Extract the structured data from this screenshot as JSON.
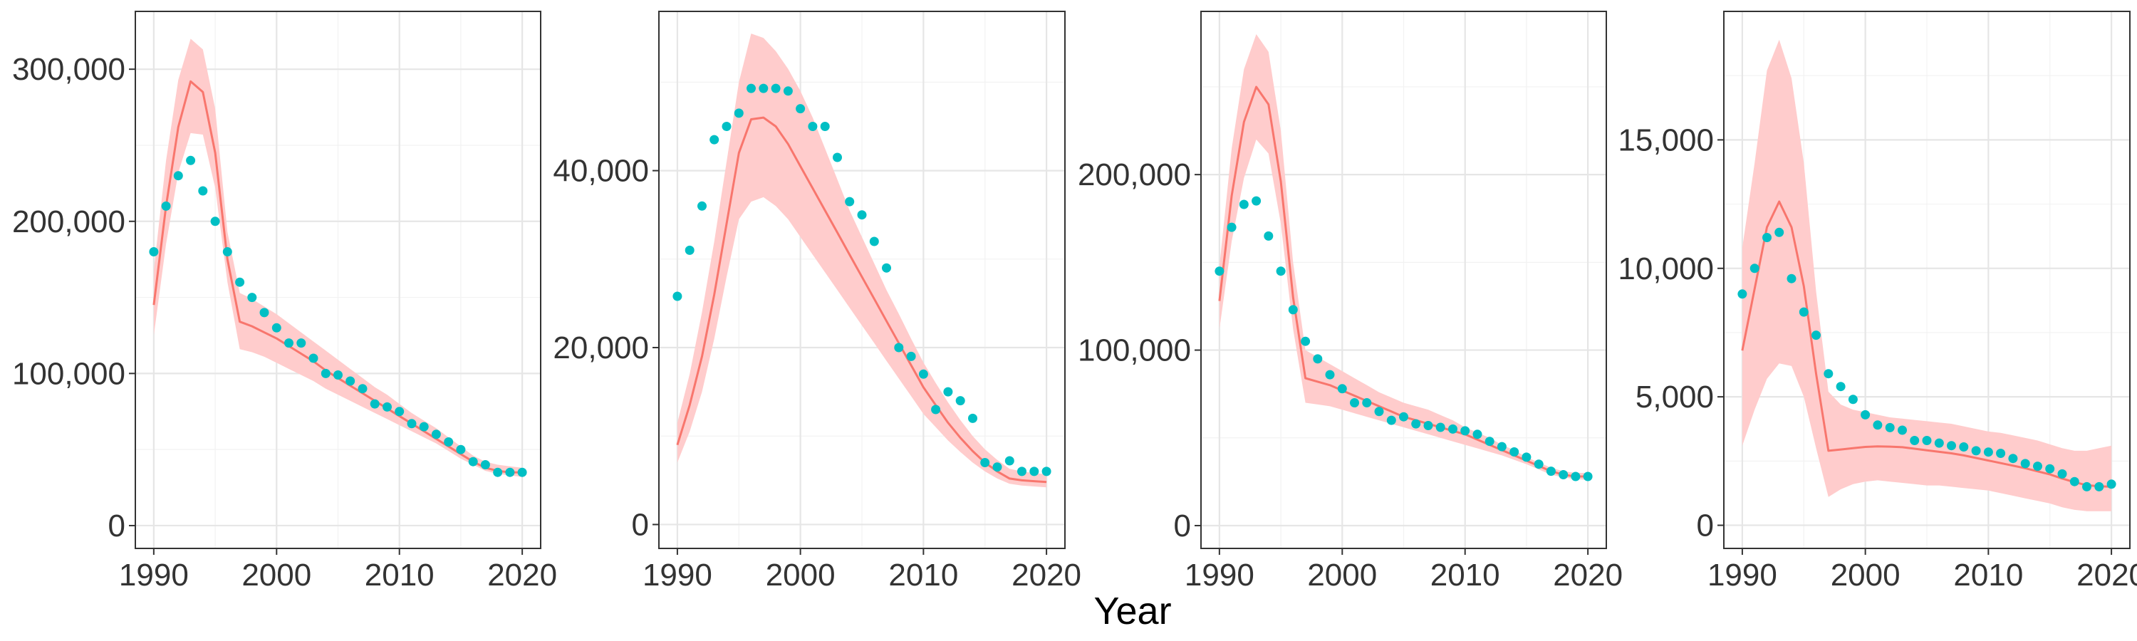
{
  "colors": {
    "fit_line": "#F8766D",
    "ribbon": "#FFCCCC",
    "points": "#00BFC4",
    "border": "#333333",
    "grid": "#E6E6E6",
    "background": "#FFFFFF"
  },
  "xlabel": "Year",
  "chart_data": [
    {
      "type": "line",
      "xlim": [
        1988.5,
        2021.5
      ],
      "ylim": [
        -15000,
        338000
      ],
      "x_ticks": [
        1990,
        2000,
        2010,
        2020
      ],
      "x_tick_labels": [
        "1990",
        "2000",
        "2010",
        "2020"
      ],
      "y_ticks": [
        0,
        100000,
        200000,
        300000
      ],
      "y_tick_labels": [
        "0",
        "100,000",
        "200,000",
        "300,000"
      ],
      "x": [
        1990,
        1991,
        1992,
        1993,
        1994,
        1995,
        1996,
        1997,
        1998,
        1999,
        2000,
        2001,
        2002,
        2003,
        2004,
        2005,
        2006,
        2007,
        2008,
        2009,
        2010,
        2011,
        2012,
        2013,
        2014,
        2015,
        2016,
        2017,
        2018,
        2019,
        2020
      ],
      "series": [
        {
          "kind": "fit",
          "values": [
            145000,
            210000,
            262000,
            292000,
            285000,
            245000,
            175000,
            134000,
            131000,
            127000,
            123000,
            118000,
            113000,
            108000,
            102000,
            97000,
            92000,
            87000,
            82000,
            77000,
            72000,
            67000,
            62000,
            57000,
            52000,
            47000,
            42000,
            38000,
            36000,
            35000,
            35000
          ]
        },
        {
          "kind": "ribbon_lower",
          "values": [
            125000,
            185000,
            232000,
            258000,
            257000,
            222000,
            160000,
            116000,
            114000,
            111000,
            107000,
            103000,
            99000,
            95000,
            90000,
            86000,
            82000,
            78000,
            74000,
            70000,
            66000,
            62000,
            58000,
            54000,
            49000,
            44000,
            40000,
            36000,
            34000,
            33000,
            32000
          ]
        },
        {
          "kind": "ribbon_upper",
          "values": [
            168000,
            240000,
            293000,
            320000,
            313000,
            274000,
            193000,
            153000,
            149000,
            144000,
            139000,
            133000,
            127000,
            121000,
            115000,
            109000,
            103000,
            97000,
            91000,
            86000,
            80000,
            74000,
            69000,
            64000,
            58000,
            52000,
            46000,
            42000,
            40000,
            39000,
            38000
          ]
        },
        {
          "kind": "observed",
          "values": [
            180000,
            210000,
            230000,
            240000,
            220000,
            200000,
            180000,
            160000,
            150000,
            140000,
            130000,
            120000,
            120000,
            110000,
            100000,
            99000,
            95000,
            90000,
            80000,
            78000,
            75000,
            67000,
            65000,
            60000,
            55000,
            50000,
            42000,
            40000,
            35000,
            35000,
            35000
          ]
        }
      ]
    },
    {
      "type": "line",
      "xlim": [
        1988.5,
        2021.5
      ],
      "ylim": [
        -2700,
        58000
      ],
      "x_ticks": [
        1990,
        2000,
        2010,
        2020
      ],
      "x_tick_labels": [
        "1990",
        "2000",
        "2010",
        "2020"
      ],
      "y_ticks": [
        0,
        20000,
        40000
      ],
      "y_tick_labels": [
        "0",
        "20,000",
        "40,000"
      ],
      "x": [
        1990,
        1991,
        1992,
        1993,
        1994,
        1995,
        1996,
        1997,
        1998,
        1999,
        2000,
        2001,
        2002,
        2003,
        2004,
        2005,
        2006,
        2007,
        2008,
        2009,
        2010,
        2011,
        2012,
        2013,
        2014,
        2015,
        2016,
        2017,
        2018,
        2019,
        2020
      ],
      "series": [
        {
          "kind": "fit",
          "values": [
            9000,
            13500,
            19000,
            26000,
            34000,
            42000,
            45800,
            46000,
            45000,
            43000,
            40500,
            38000,
            35500,
            33000,
            30500,
            28000,
            25500,
            23000,
            20500,
            18000,
            15500,
            13500,
            11500,
            9800,
            8300,
            7000,
            6000,
            5200,
            5000,
            4900,
            4800
          ]
        },
        {
          "kind": "ribbon_lower",
          "values": [
            7000,
            10500,
            15000,
            21000,
            28000,
            34500,
            36500,
            37000,
            36000,
            34500,
            32500,
            30500,
            28500,
            26500,
            24500,
            22500,
            20500,
            18500,
            16500,
            14500,
            12500,
            11000,
            9500,
            8200,
            7000,
            6000,
            5200,
            4600,
            4400,
            4300,
            4200
          ]
        },
        {
          "kind": "ribbon_upper",
          "values": [
            11500,
            17000,
            24000,
            32000,
            41000,
            50000,
            55500,
            55000,
            53500,
            51500,
            49000,
            46000,
            42500,
            39000,
            35500,
            32500,
            29500,
            26500,
            23800,
            21000,
            18300,
            16000,
            13800,
            11800,
            10000,
            8500,
            7300,
            6300,
            6000,
            5800,
            5700
          ]
        },
        {
          "kind": "observed",
          "values": [
            25800,
            31000,
            36000,
            43500,
            45000,
            46500,
            49300,
            49300,
            49300,
            49000,
            47000,
            45000,
            45000,
            41500,
            36500,
            35000,
            32000,
            29000,
            20000,
            19000,
            17000,
            13000,
            15000,
            14000,
            12000,
            7000,
            6500,
            7200,
            6000,
            6000,
            6000
          ]
        }
      ]
    },
    {
      "type": "line",
      "xlim": [
        1988.5,
        2021.5
      ],
      "ylim": [
        -13000,
        293000
      ],
      "x_ticks": [
        1990,
        2000,
        2010,
        2020
      ],
      "x_tick_labels": [
        "1990",
        "2000",
        "2010",
        "2020"
      ],
      "y_ticks": [
        0,
        100000,
        200000
      ],
      "y_tick_labels": [
        "0",
        "100,000",
        "200,000"
      ],
      "x": [
        1990,
        1991,
        1992,
        1993,
        1994,
        1995,
        1996,
        1997,
        1998,
        1999,
        2000,
        2001,
        2002,
        2003,
        2004,
        2005,
        2006,
        2007,
        2008,
        2009,
        2010,
        2011,
        2012,
        2013,
        2014,
        2015,
        2016,
        2017,
        2018,
        2019,
        2020
      ],
      "series": [
        {
          "kind": "fit",
          "values": [
            128000,
            188000,
            230000,
            250000,
            240000,
            196000,
            130000,
            84000,
            82000,
            80000,
            77000,
            74000,
            71000,
            68000,
            65000,
            62000,
            60000,
            58000,
            56000,
            54000,
            52000,
            49000,
            46000,
            43000,
            40000,
            37000,
            34000,
            31000,
            29000,
            28000,
            28000
          ]
        },
        {
          "kind": "ribbon_lower",
          "values": [
            112000,
            162000,
            198000,
            220000,
            212000,
            172000,
            112000,
            70000,
            69000,
            68000,
            66000,
            64000,
            62000,
            60000,
            58000,
            56000,
            54000,
            52000,
            50000,
            48000,
            46000,
            44000,
            42000,
            40000,
            37500,
            35000,
            32000,
            29000,
            27500,
            26500,
            26000
          ]
        },
        {
          "kind": "ribbon_upper",
          "values": [
            148000,
            215000,
            260000,
            280000,
            270000,
            225000,
            150000,
            100000,
            96000,
            92000,
            88000,
            84000,
            80000,
            76000,
            73000,
            70000,
            68000,
            66000,
            63000,
            60000,
            56000,
            53000,
            50000,
            46000,
            43000,
            39000,
            36000,
            33000,
            31000,
            30000,
            30000
          ]
        },
        {
          "kind": "observed",
          "values": [
            145000,
            170000,
            183000,
            185000,
            165000,
            145000,
            123000,
            105000,
            95000,
            86000,
            78000,
            70000,
            70000,
            65000,
            60000,
            62000,
            58000,
            57000,
            56000,
            55000,
            54000,
            52000,
            48000,
            45000,
            42000,
            39000,
            35000,
            31000,
            29000,
            28000,
            28000
          ]
        }
      ]
    },
    {
      "type": "line",
      "xlim": [
        1988.5,
        2021.5
      ],
      "ylim": [
        -900,
        20000
      ],
      "x_ticks": [
        1990,
        2000,
        2010,
        2020
      ],
      "x_tick_labels": [
        "1990",
        "2000",
        "2010",
        "2020"
      ],
      "y_ticks": [
        0,
        5000,
        10000,
        15000
      ],
      "y_tick_labels": [
        "0",
        "5,000",
        "10,000",
        "15,000"
      ],
      "x": [
        1990,
        1991,
        1992,
        1993,
        1994,
        1995,
        1996,
        1997,
        1998,
        1999,
        2000,
        2001,
        2002,
        2003,
        2004,
        2005,
        2006,
        2007,
        2008,
        2009,
        2010,
        2011,
        2012,
        2013,
        2014,
        2015,
        2016,
        2017,
        2018,
        2019,
        2020
      ],
      "series": [
        {
          "kind": "fit",
          "values": [
            6800,
            9200,
            11600,
            12600,
            11600,
            9300,
            5900,
            2900,
            2950,
            3000,
            3050,
            3070,
            3060,
            3040,
            2980,
            2920,
            2860,
            2800,
            2720,
            2620,
            2520,
            2420,
            2320,
            2220,
            2100,
            1980,
            1820,
            1680,
            1560,
            1520,
            1500
          ]
        },
        {
          "kind": "ribbon_lower",
          "values": [
            3100,
            4500,
            5700,
            6300,
            6200,
            5000,
            3000,
            1100,
            1400,
            1600,
            1700,
            1750,
            1700,
            1650,
            1600,
            1550,
            1550,
            1500,
            1450,
            1400,
            1350,
            1250,
            1150,
            1050,
            950,
            850,
            700,
            600,
            550,
            550,
            550
          ]
        },
        {
          "kind": "ribbon_upper",
          "values": [
            10800,
            14100,
            17700,
            18900,
            17400,
            14100,
            9100,
            5200,
            4700,
            4500,
            4400,
            4300,
            4200,
            4150,
            4100,
            4050,
            4000,
            3950,
            3850,
            3750,
            3650,
            3600,
            3500,
            3400,
            3300,
            3150,
            3000,
            2900,
            2900,
            3000,
            3100
          ]
        },
        {
          "kind": "observed",
          "values": [
            9000,
            10000,
            11200,
            11400,
            9600,
            8300,
            7400,
            5900,
            5400,
            4900,
            4300,
            3900,
            3800,
            3700,
            3300,
            3300,
            3200,
            3100,
            3050,
            2900,
            2850,
            2800,
            2600,
            2400,
            2300,
            2200,
            2000,
            1700,
            1500,
            1500,
            1600
          ]
        }
      ]
    }
  ]
}
